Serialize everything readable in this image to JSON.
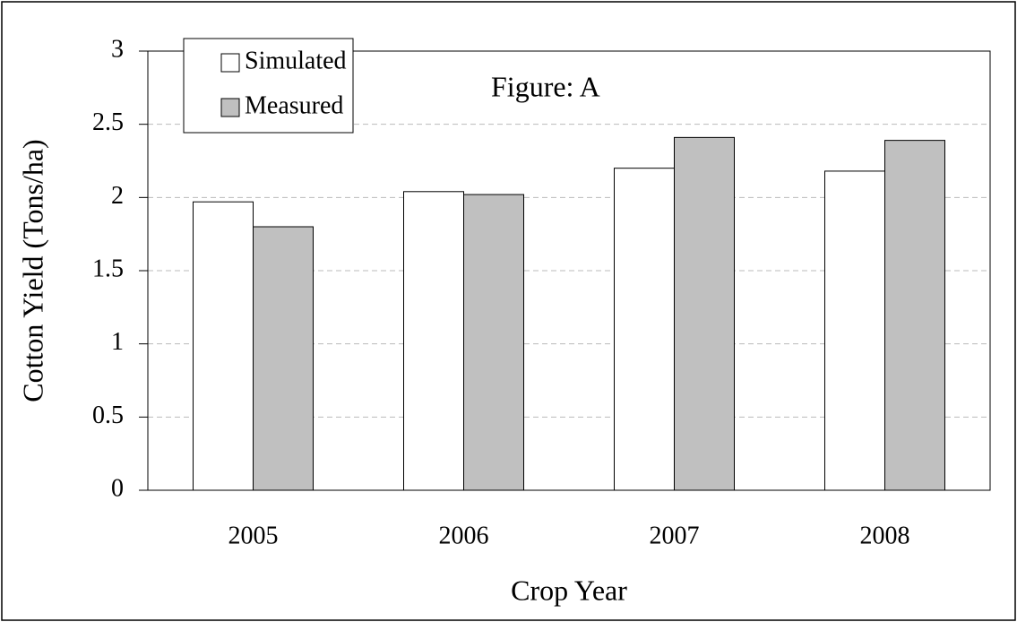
{
  "chart_data": {
    "type": "bar",
    "annotation": "Figure: A",
    "x_label": "Crop Year",
    "y_label": "Cotton Yield  (Tons/ha)",
    "categories": [
      "2005",
      "2006",
      "2007",
      "2008"
    ],
    "series": [
      {
        "name": "Simulated",
        "color": "#ffffff",
        "values": [
          1.97,
          2.04,
          2.2,
          2.18
        ]
      },
      {
        "name": "Measured",
        "color": "#c0c0c0",
        "values": [
          1.8,
          2.02,
          2.41,
          2.39
        ]
      }
    ],
    "ylim": [
      0,
      3
    ],
    "yticks": [
      0,
      0.5,
      1,
      1.5,
      2,
      2.5,
      3
    ],
    "grid": true,
    "legend": "upper left"
  }
}
